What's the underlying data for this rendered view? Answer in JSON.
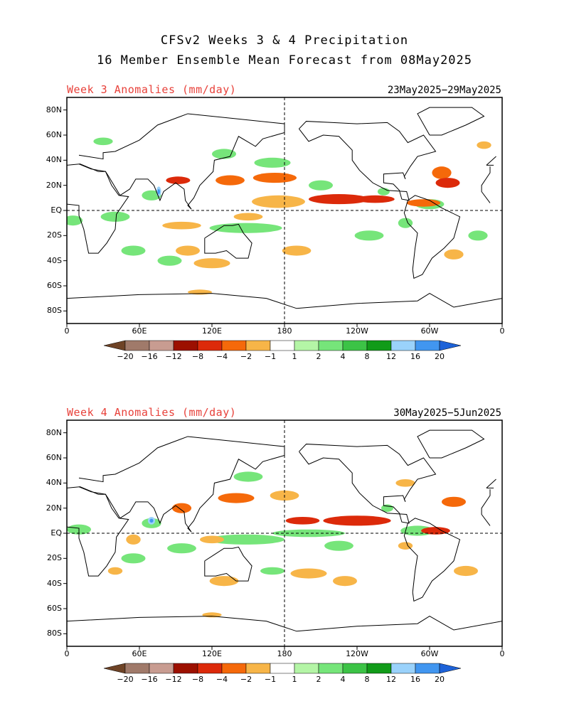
{
  "title_line1": "CFSv2 Weeks 3 & 4 Precipitation",
  "title_line2": "16 Member Ensemble Mean Forecast from 08May2025",
  "panels": [
    {
      "title": "Week 3 Anomalies (mm/day)",
      "dates": "23May2025−29May2025"
    },
    {
      "title": "Week 4 Anomalies (mm/day)",
      "dates": "30May2025−5Jun2025"
    }
  ],
  "lat_labels": [
    "80N",
    "60N",
    "40N",
    "20N",
    "EQ",
    "20S",
    "40S",
    "60S",
    "80S"
  ],
  "lon_labels": [
    "0",
    "60E",
    "120E",
    "180",
    "120W",
    "60W",
    "0"
  ],
  "colorbar": {
    "labels": [
      "−20",
      "−16",
      "−12",
      "−8",
      "−4",
      "−2",
      "−1",
      "1",
      "2",
      "4",
      "8",
      "12",
      "16",
      "20"
    ],
    "colors": [
      "#6e4326",
      "#a07a6a",
      "#c89c91",
      "#9c1000",
      "#dc2a0a",
      "#f5690a",
      "#f7b548",
      "#ffffff",
      "#b4f5a6",
      "#76e57a",
      "#3cc346",
      "#119b19",
      "#9ad2fb",
      "#4196f0",
      "#1d62d8"
    ]
  }
}
